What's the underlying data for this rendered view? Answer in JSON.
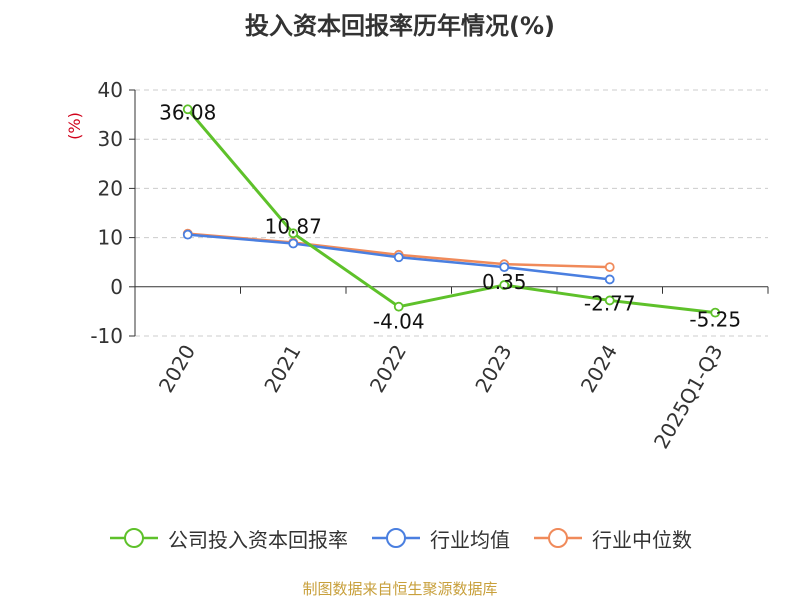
{
  "chart_data": {
    "type": "line",
    "title": "投入资本回报率历年情况(%)",
    "ylabel": "(%)",
    "categories": [
      "2020",
      "2021",
      "2022",
      "2023",
      "2024",
      "2025Q1-Q3"
    ],
    "ylim": [
      -10,
      40
    ],
    "yticks": [
      -10,
      0,
      10,
      20,
      30,
      40
    ],
    "grid": "horizontal-dashed",
    "legend_position": "bottom",
    "series": [
      {
        "name": "公司投入资本回报率",
        "color": "#5ec12a",
        "show_labels": true,
        "values": [
          36.08,
          10.87,
          -4.04,
          0.35,
          -2.77,
          -5.25
        ],
        "labels": [
          "36.08",
          "10.87",
          "-4.04",
          "0.35",
          "-2.77",
          "-5.25"
        ]
      },
      {
        "name": "行业均值",
        "color": "#4a7fe0",
        "show_labels": false,
        "values": [
          10.6,
          8.8,
          6.0,
          4.0,
          1.5,
          null
        ]
      },
      {
        "name": "行业中位数",
        "color": "#f08a5a",
        "show_labels": false,
        "values": [
          10.8,
          9.0,
          6.5,
          4.6,
          4.0,
          null
        ]
      }
    ]
  },
  "source_note": "制图数据来自恒生聚源数据库"
}
